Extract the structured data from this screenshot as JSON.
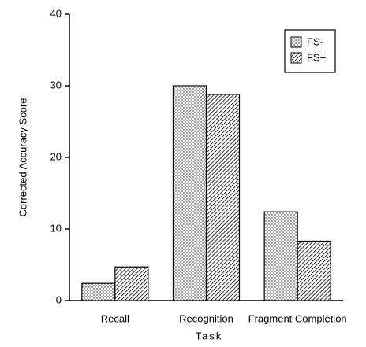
{
  "chart_data": {
    "type": "bar",
    "xlabel": "Task",
    "ylabel": "Corrected Accuracy Score",
    "categories": [
      "Recall",
      "Recognition",
      "Fragment Completion"
    ],
    "series": [
      {
        "name": "FS-",
        "color": "#000000",
        "pattern": "dots",
        "values": [
          2.4,
          30.0,
          12.4
        ]
      },
      {
        "name": "FS+",
        "color": "#000000",
        "pattern": "hatch",
        "values": [
          4.7,
          28.8,
          8.3
        ]
      }
    ],
    "ylim": [
      0,
      40
    ],
    "yticks": [
      0,
      10,
      20,
      30,
      40
    ],
    "grid": false,
    "legend": "upper right"
  }
}
